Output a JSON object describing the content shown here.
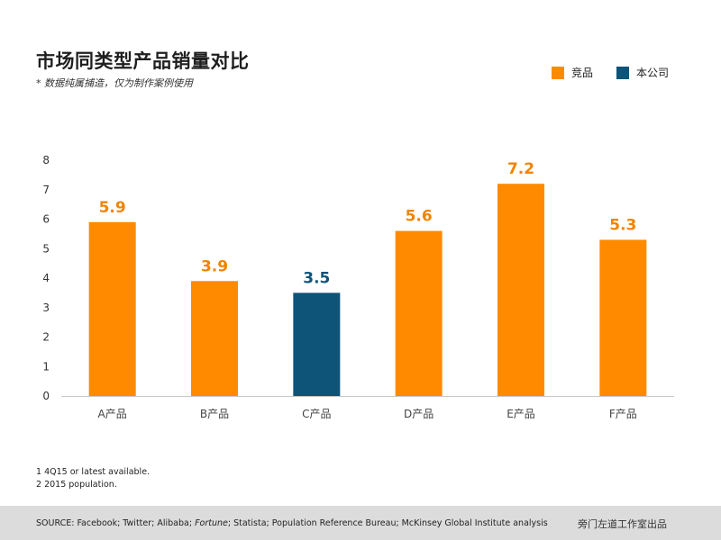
{
  "header": {
    "title": "市场同类型产品销量对比",
    "subtitle": "* 数据纯属捕造，仅为制作案例使用"
  },
  "legend": [
    {
      "label": "竞品",
      "color": "#FF8A00"
    },
    {
      "label": "本公司",
      "color": "#0E5479"
    }
  ],
  "chart_data": {
    "type": "bar",
    "categories": [
      "A产品",
      "B产品",
      "C产品",
      "D产品",
      "E产品",
      "F产品"
    ],
    "values": [
      5.9,
      3.9,
      3.5,
      5.6,
      7.2,
      5.3
    ],
    "data_labels": [
      "5.9",
      "3.9",
      "3.5",
      "5.6",
      "7.2",
      "5.3"
    ],
    "series_membership": [
      "竞品",
      "竞品",
      "本公司",
      "竞品",
      "竞品",
      "竞品"
    ],
    "y_ticks": [
      "0",
      "1",
      "2",
      "3",
      "4",
      "5",
      "6",
      "7",
      "8"
    ],
    "ylim": [
      0,
      8
    ],
    "grid": false,
    "legend_position": "top-right",
    "colors": {
      "competitor": "#FF8A00",
      "company": "#0E5479",
      "competitor_label": "#F08400"
    }
  },
  "footnotes": [
    "1 4Q15 or latest available.",
    "2 2015 population."
  ],
  "footer": {
    "source_prefix": "SOURCE: Facebook; Twitter; Alibaba; ",
    "source_italic": "Fortune",
    "source_suffix": "; Statista; Population Reference Bureau; McKinsey Global Institute analysis",
    "credit": "旁门左道工作室出品"
  }
}
